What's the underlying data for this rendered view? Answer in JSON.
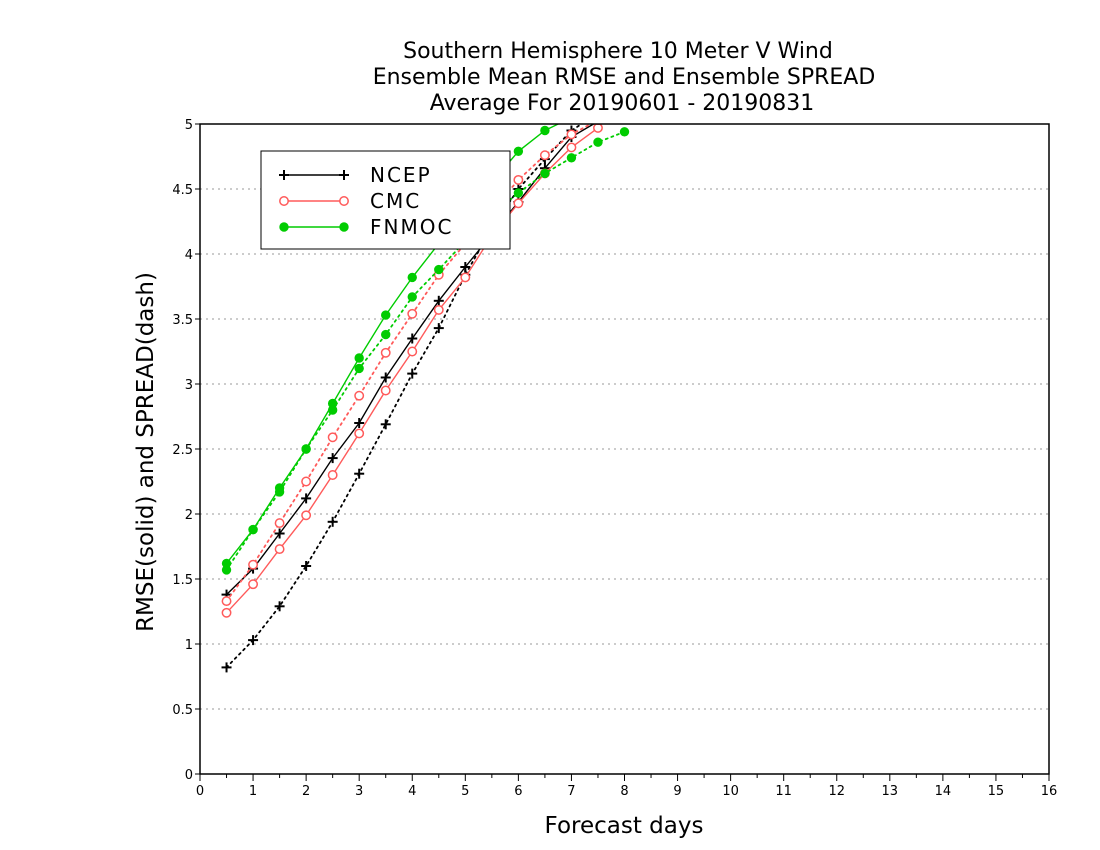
{
  "chart_data": {
    "type": "line",
    "title": [
      "Southern Hemisphere 10 Meter V Wind",
      "Ensemble Mean RMSE and Ensemble SPREAD",
      "Average For 20190601 - 20190831"
    ],
    "xlabel": "Forecast days",
    "ylabel": "RMSE(solid) and SPREAD(dash)",
    "xlim": [
      0,
      16
    ],
    "ylim": [
      0,
      5
    ],
    "xticks": [
      "0",
      "1",
      "2",
      "3",
      "4",
      "5",
      "6",
      "7",
      "8",
      "9",
      "10",
      "11",
      "12",
      "13",
      "14",
      "15",
      "16"
    ],
    "yticks": [
      "0",
      "0.5",
      "1",
      "1.5",
      "2",
      "2.5",
      "3",
      "3.5",
      "4",
      "4.5",
      "5"
    ],
    "grid": "horizontal dotted",
    "legend_position": "top-left",
    "legend": [
      "NCEP",
      "CMC",
      "FNMOC"
    ],
    "series": [
      {
        "name": "NCEP",
        "kind": "RMSE",
        "line": "solid",
        "marker": "plus",
        "color": "#000000",
        "x": [
          0.5,
          1,
          1.5,
          2,
          2.5,
          3,
          3.5,
          4,
          4.5,
          5,
          5.5,
          6,
          6.5,
          7,
          7.5
        ],
        "y": [
          1.38,
          1.58,
          1.85,
          2.12,
          2.43,
          2.7,
          3.05,
          3.35,
          3.64,
          3.9,
          4.15,
          4.4,
          4.66,
          4.9,
          5.02
        ]
      },
      {
        "name": "NCEP",
        "kind": "SPREAD",
        "line": "dotted",
        "marker": "plus",
        "color": "#000000",
        "x": [
          0.5,
          1,
          1.5,
          2,
          2.5,
          3,
          3.5,
          4,
          4.5,
          5,
          5.5,
          6,
          6.5,
          7,
          7.5
        ],
        "y": [
          0.82,
          1.03,
          1.29,
          1.6,
          1.94,
          2.31,
          2.69,
          3.08,
          3.43,
          3.84,
          4.2,
          4.5,
          4.73,
          4.95,
          5.08
        ]
      },
      {
        "name": "CMC",
        "kind": "RMSE",
        "line": "solid",
        "marker": "circle",
        "color": "#ff5a5a",
        "x": [
          0.5,
          1,
          1.5,
          2,
          2.5,
          3,
          3.5,
          4,
          4.5,
          5,
          5.5,
          6,
          6.5,
          7,
          7.5
        ],
        "y": [
          1.24,
          1.46,
          1.73,
          1.99,
          2.3,
          2.62,
          2.95,
          3.25,
          3.57,
          3.82,
          4.14,
          4.39,
          4.62,
          4.82,
          4.97
        ]
      },
      {
        "name": "CMC",
        "kind": "SPREAD",
        "line": "dotted",
        "marker": "circle",
        "color": "#ff5a5a",
        "x": [
          0.5,
          1,
          1.5,
          2,
          2.5,
          3,
          3.5,
          4,
          4.5,
          5,
          5.5,
          6,
          6.5,
          7,
          7.5
        ],
        "y": [
          1.33,
          1.61,
          1.93,
          2.25,
          2.59,
          2.91,
          3.24,
          3.54,
          3.84,
          4.08,
          4.33,
          4.57,
          4.76,
          4.92,
          5.03
        ]
      },
      {
        "name": "FNMOC",
        "kind": "RMSE",
        "line": "solid",
        "marker": "dot",
        "color": "#00cc00",
        "x": [
          0.5,
          1,
          1.5,
          2,
          2.5,
          3,
          3.5,
          4,
          4.5,
          5,
          5.5,
          6,
          6.5,
          7
        ],
        "y": [
          1.62,
          1.88,
          2.2,
          2.5,
          2.85,
          3.2,
          3.53,
          3.82,
          4.08,
          4.3,
          4.55,
          4.79,
          4.95,
          5.05
        ]
      },
      {
        "name": "FNMOC",
        "kind": "SPREAD",
        "line": "dotted",
        "marker": "dot",
        "color": "#00cc00",
        "x": [
          0.5,
          1,
          1.5,
          2,
          2.5,
          3,
          3.5,
          4,
          4.5,
          5,
          5.5,
          6,
          6.5,
          7,
          7.5,
          8
        ],
        "y": [
          1.57,
          1.88,
          2.17,
          2.5,
          2.8,
          3.12,
          3.38,
          3.67,
          3.88,
          4.1,
          4.3,
          4.47,
          4.62,
          4.74,
          4.86,
          4.94
        ]
      }
    ]
  }
}
